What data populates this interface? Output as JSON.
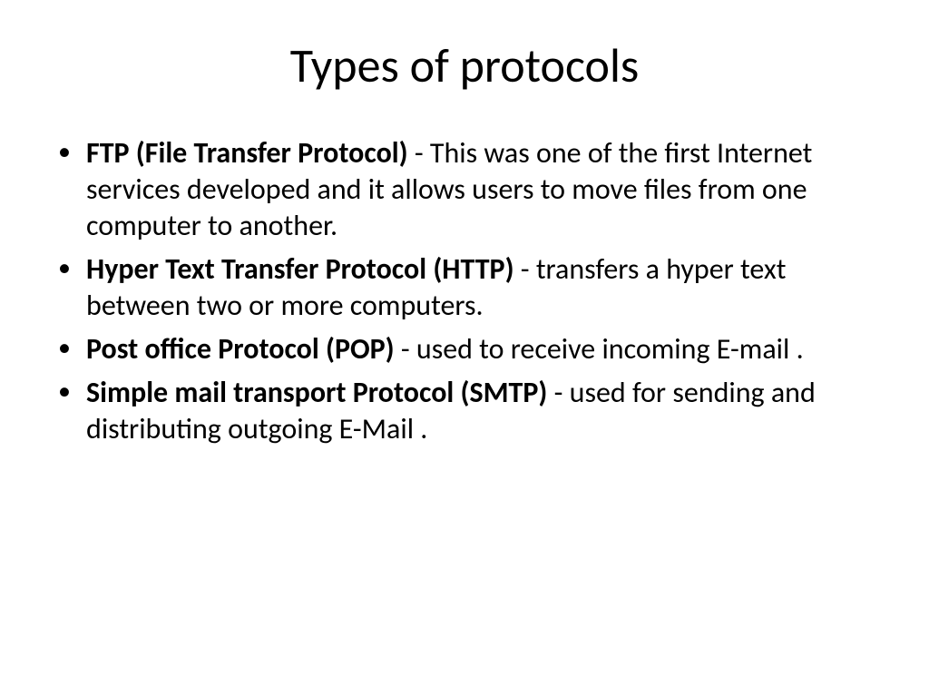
{
  "slide": {
    "title": "Types of protocols",
    "title_fontsize": 52,
    "title_color": "#000000",
    "background_color": "#ffffff",
    "bullets": [
      {
        "bold": "FTP (File Transfer Protocol) ",
        "rest": "- This was one of the first Internet services developed and it allows users to move files from one computer to another."
      },
      {
        "bold": "Hyper Text Transfer Protocol (HTTP) ",
        "rest": "- transfers a hyper text between two or more computers."
      },
      {
        "bold": "Post office Protocol (POP) ",
        "rest": "-  used to receive incoming E-mail ."
      },
      {
        "bold": "Simple mail transport Protocol (SMTP) ",
        "rest": "- used for sending and distributing outgoing E-Mail ."
      }
    ],
    "body_fontsize": 32,
    "body_color": "#000000",
    "font_family": "Calibri"
  }
}
